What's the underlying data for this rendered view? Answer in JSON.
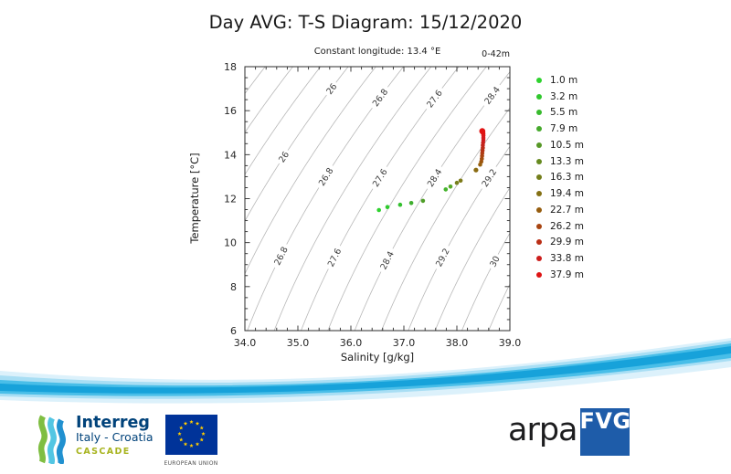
{
  "page": {
    "title": "Day AVG: T-S Diagram: 15/12/2020"
  },
  "chart_data": {
    "type": "scatter",
    "title": "Day AVG: T-S Diagram: 15/12/2020",
    "subtitle": "Constant longitude: 13.4 °E",
    "depth_range": "0-42m",
    "xlabel": "Salinity [g/kg]",
    "ylabel": "Temperature [°C]",
    "xlim": [
      34.0,
      39.0
    ],
    "ylim": [
      6.0,
      18.0
    ],
    "xtick_labels": [
      "34.0",
      "35.0",
      "36.0",
      "37.0",
      "38.0",
      "39.0"
    ],
    "ytick_labels": [
      "6",
      "8",
      "10",
      "12",
      "14",
      "16",
      "18"
    ],
    "x_minor_step": 0.2,
    "y_minor_step": 0.5,
    "grid": false,
    "legend_position": "right",
    "frame_color": "#2b2b2b",
    "tick_label_color": "#262626",
    "density_contours": {
      "variable": "sigma-t density [kg/m3]",
      "min": 24.8,
      "max": 30.4,
      "step": 0.4,
      "line_color": "#b8b8b8",
      "label_color": "#3c3c3c",
      "labels": [
        {
          "level": 26.0,
          "text": "26",
          "anchors_t": [
            17.0,
            13.9
          ]
        },
        {
          "level": 26.8,
          "text": "26.8",
          "anchors_t": [
            16.6,
            13.0,
            9.4
          ]
        },
        {
          "level": 27.6,
          "text": "27.6",
          "anchors_t": [
            16.55,
            12.95,
            9.33
          ]
        },
        {
          "level": 28.4,
          "text": "28.4",
          "anchors_t": [
            16.7,
            12.95,
            9.2
          ]
        },
        {
          "level": 29.2,
          "text": "29.2",
          "anchors_t": [
            12.95,
            9.33
          ]
        },
        {
          "level": 30.0,
          "text": "30",
          "anchors_t": [
            9.15
          ]
        }
      ]
    },
    "legend": [
      {
        "label": "1.0 m",
        "color": "#2ed22e"
      },
      {
        "label": "3.2 m",
        "color": "#30c82e"
      },
      {
        "label": "5.5 m",
        "color": "#38ba2e"
      },
      {
        "label": "7.9 m",
        "color": "#46a92c"
      },
      {
        "label": "10.5 m",
        "color": "#579827"
      },
      {
        "label": "13.3 m",
        "color": "#668a20"
      },
      {
        "label": "16.3 m",
        "color": "#747e1b"
      },
      {
        "label": "19.4 m",
        "color": "#847014"
      },
      {
        "label": "22.7 m",
        "color": "#965d0f"
      },
      {
        "label": "26.2 m",
        "color": "#a84511"
      },
      {
        "label": "29.9 m",
        "color": "#ba2f16"
      },
      {
        "label": "33.8 m",
        "color": "#cc1e1c"
      },
      {
        "label": "37.9 m",
        "color": "#de1414"
      }
    ],
    "points": [
      {
        "s": 36.53,
        "t": 11.48,
        "color": "#2ed22e"
      },
      {
        "s": 36.69,
        "t": 11.62,
        "color": "#2fca2e"
      },
      {
        "s": 36.93,
        "t": 11.72,
        "color": "#33c02f"
      },
      {
        "s": 37.14,
        "t": 11.8,
        "color": "#3fae2e"
      },
      {
        "s": 37.36,
        "t": 11.9,
        "color": "#4f9e28"
      },
      {
        "s": 37.79,
        "t": 12.42,
        "color": "#44b42c"
      },
      {
        "s": 37.88,
        "t": 12.55,
        "color": "#55a827"
      },
      {
        "s": 38.0,
        "t": 12.72,
        "color": "#75801c"
      },
      {
        "s": 38.07,
        "t": 12.82,
        "color": "#7d7a18"
      },
      {
        "s": 38.36,
        "t": 13.3,
        "color": "#8a6b12",
        "r": 2.6
      },
      {
        "s": 38.44,
        "t": 13.55,
        "color": "#96600f"
      },
      {
        "s": 38.46,
        "t": 13.68,
        "color": "#9c570e"
      },
      {
        "s": 38.47,
        "t": 13.81,
        "color": "#a24e0f"
      },
      {
        "s": 38.475,
        "t": 13.94,
        "color": "#a84511"
      },
      {
        "s": 38.48,
        "t": 14.07,
        "color": "#ae3d13"
      },
      {
        "s": 38.485,
        "t": 14.19,
        "color": "#b43415"
      },
      {
        "s": 38.49,
        "t": 14.31,
        "color": "#ba2c17"
      },
      {
        "s": 38.49,
        "t": 14.43,
        "color": "#c02519"
      },
      {
        "s": 38.495,
        "t": 14.55,
        "color": "#c6201b"
      },
      {
        "s": 38.5,
        "t": 14.66,
        "color": "#cc1c1d"
      },
      {
        "s": 38.5,
        "t": 14.76,
        "color": "#d2191e"
      },
      {
        "s": 38.5,
        "t": 14.86,
        "color": "#d6171b"
      },
      {
        "s": 38.5,
        "t": 14.94,
        "color": "#da1518"
      },
      {
        "s": 38.49,
        "t": 15.01,
        "color": "#de1414",
        "r": 2.8
      },
      {
        "s": 38.48,
        "t": 15.07,
        "color": "#e11212",
        "r": 3.3
      }
    ]
  },
  "footer": {
    "interreg": {
      "brand": "Interreg",
      "program": "Italy - Croatia",
      "project": "CASCADE",
      "brand_color": "#00427a",
      "project_color": "#a8b420",
      "ribbon_colors": [
        "#7fbe42",
        "#53c6e3",
        "#2191d0"
      ]
    },
    "eu": {
      "caption": "EUROPEAN UNION",
      "flag_bg": "#003399",
      "star_color": "#ffcc00"
    },
    "arpa": {
      "name": "arpa",
      "region": "FVG",
      "name_color": "#1d1d1f",
      "box_color": "#1e5ca9",
      "region_color": "#ffffff"
    }
  },
  "decor": {
    "wave_colors": [
      "#dcf1fb",
      "#a8def4",
      "#49bee8",
      "#17a2da"
    ]
  }
}
